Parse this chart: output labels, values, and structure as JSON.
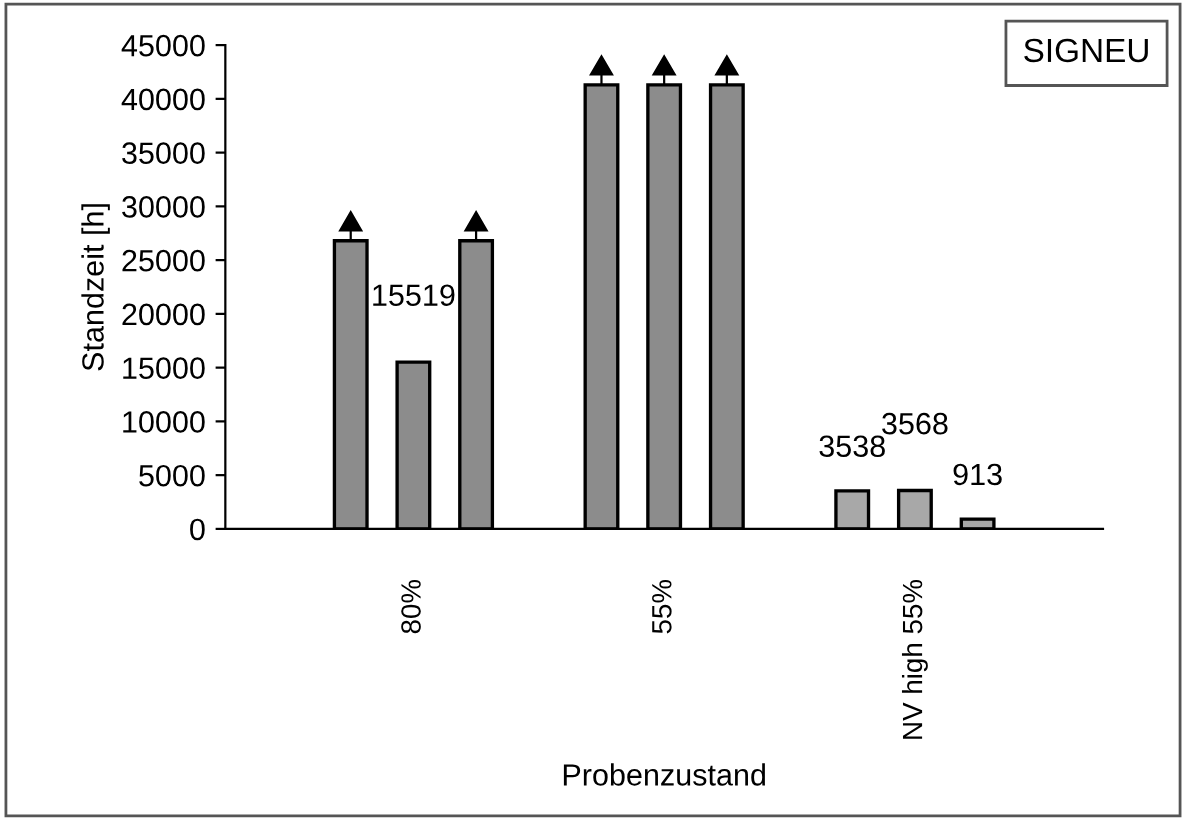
{
  "chart_data": {
    "type": "bar",
    "xlabel": "Probenzustand",
    "ylabel": "Standzeit [h]",
    "categories": [
      "80%",
      "55%",
      "NV high 55%"
    ],
    "series": [
      {
        "colors": [
          "#8c8c8c",
          "#8c8c8c",
          "#a8a8a8"
        ],
        "values": [
          26800,
          41300,
          3538
        ],
        "value_labels": [
          null,
          null,
          "3538"
        ]
      },
      {
        "colors": [
          "#8c8c8c",
          "#8c8c8c",
          "#a8a8a8"
        ],
        "values": [
          15519,
          41300,
          3568
        ],
        "value_labels": [
          "15519",
          null,
          "3568"
        ]
      },
      {
        "colors": [
          "#8c8c8c",
          "#8c8c8c",
          "#a8a8a8"
        ],
        "values": [
          26800,
          41300,
          913
        ],
        "value_labels": [
          null,
          null,
          "913"
        ]
      }
    ],
    "ylim": [
      0,
      45000
    ],
    "yticks": [
      0,
      5000,
      10000,
      15000,
      20000,
      25000,
      30000,
      35000,
      40000,
      45000
    ],
    "grid": false,
    "annotations": [
      "SIGNEU"
    ]
  }
}
